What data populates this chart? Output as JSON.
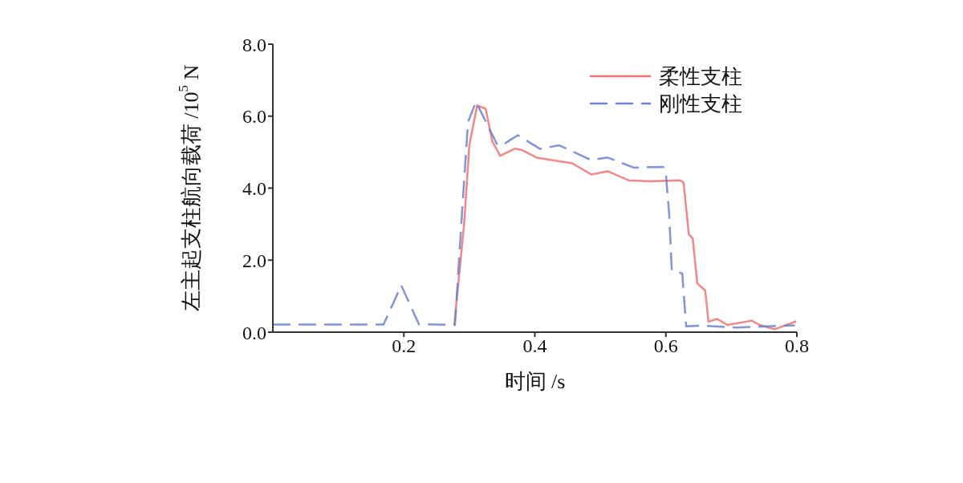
{
  "chart_data": {
    "type": "line",
    "xlabel": "时间 /s",
    "ylabel": "左主起支柱航向载荷 /10$^{5}$ N",
    "xlim": [
      0,
      0.8
    ],
    "xticks": [
      0.2,
      0.4,
      0.6,
      0.8
    ],
    "ylim": [
      0,
      8
    ],
    "yticks": [
      {
        "value": 0,
        "label": "0.0"
      },
      {
        "value": 2,
        "label": "2.0"
      },
      {
        "value": 4,
        "label": "4.0"
      },
      {
        "value": 6,
        "label": "6.0"
      },
      {
        "value": 8,
        "label": "8.0"
      }
    ],
    "grid": false,
    "legend": "top right",
    "marker": "none",
    "series": [
      {
        "name": "柔性支柱",
        "color": "#f07272",
        "line_style": "solid",
        "x": [
          0.277,
          0.292,
          0.3,
          0.312,
          0.325,
          0.335,
          0.347,
          0.37,
          0.38,
          0.404,
          0.457,
          0.486,
          0.511,
          0.543,
          0.576,
          0.621,
          0.627,
          0.635,
          0.641,
          0.648,
          0.66,
          0.665,
          0.678,
          0.694,
          0.731,
          0.743,
          0.766,
          0.799
        ],
        "values": [
          0.2,
          3.0,
          5.2,
          6.3,
          6.2,
          5.3,
          4.9,
          5.1,
          5.06,
          4.84,
          4.69,
          4.38,
          4.47,
          4.22,
          4.19,
          4.22,
          4.16,
          2.72,
          2.6,
          1.35,
          1.16,
          0.29,
          0.37,
          0.2,
          0.32,
          0.2,
          0.08,
          0.3
        ]
      },
      {
        "name": "刚性支柱",
        "color": "#6c80d0",
        "line_style": "dashed",
        "x": [
          0,
          0.169,
          0.196,
          0.223,
          0.278,
          0.29,
          0.298,
          0.31,
          0.327,
          0.343,
          0.355,
          0.374,
          0.408,
          0.437,
          0.486,
          0.511,
          0.551,
          0.596,
          0.6,
          0.605,
          0.609,
          0.625,
          0.631,
          0.652,
          0.707,
          0.797
        ],
        "values": [
          0.21,
          0.21,
          1.3,
          0.22,
          0.2,
          3.66,
          5.84,
          6.4,
          5.78,
          5.19,
          5.25,
          5.47,
          5.09,
          5.19,
          4.78,
          4.85,
          4.57,
          4.59,
          4.41,
          3.28,
          1.72,
          1.63,
          0.16,
          0.18,
          0.13,
          0.19
        ]
      }
    ]
  }
}
